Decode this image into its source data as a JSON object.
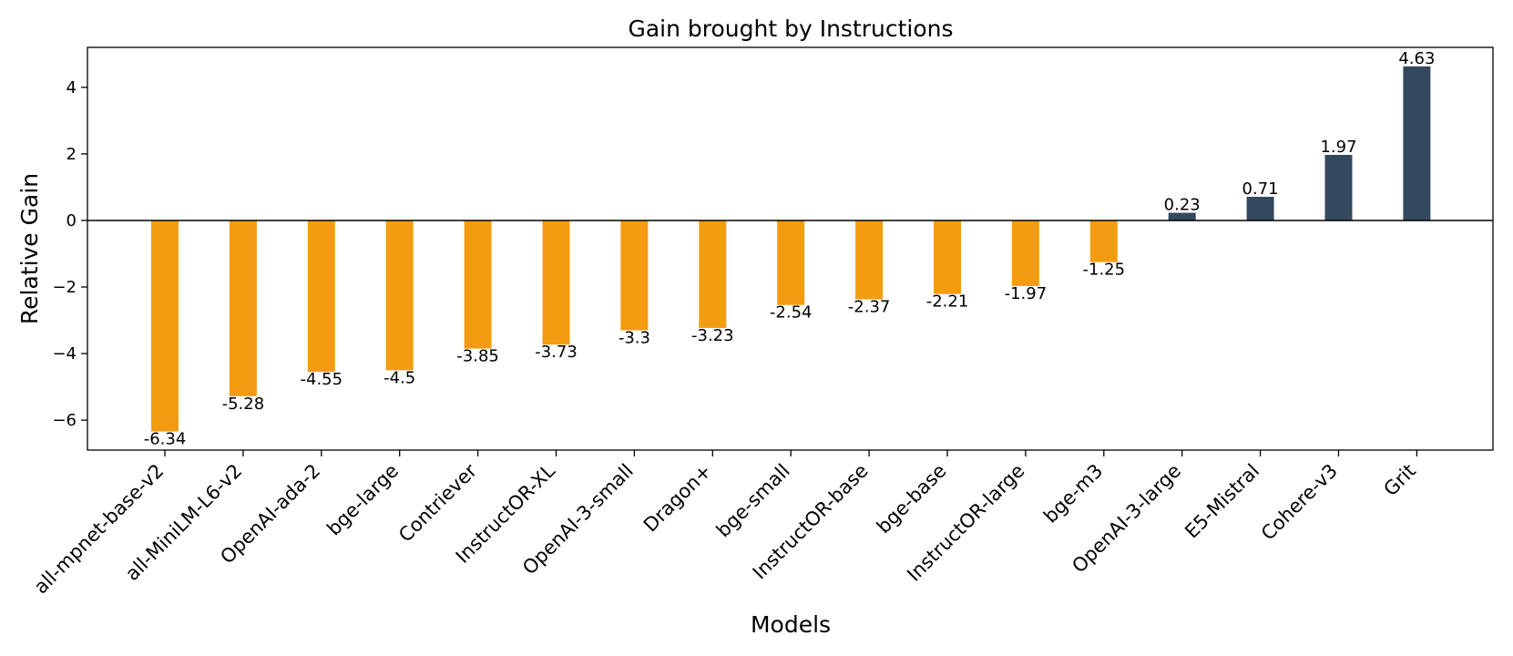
{
  "chart_data": {
    "type": "bar",
    "title": "Gain brought by Instructions",
    "xlabel": "Models",
    "ylabel": "Relative Gain",
    "ylim": [
      -6.9,
      5.2
    ],
    "yticks": [
      4,
      2,
      0,
      -2,
      -4,
      -6
    ],
    "grid": false,
    "categories": [
      "all-mpnet-base-v2",
      "all-MiniLM-L6-v2",
      "OpenAI-ada-2",
      "bge-large",
      "Contriever",
      "InstructOR-XL",
      "OpenAI-3-small",
      "Dragon+",
      "bge-small",
      "InstructOR-base",
      "bge-base",
      "InstructOR-large",
      "bge-m3",
      "OpenAI-3-large",
      "E5-Mistral",
      "Cohere-v3",
      "Grit"
    ],
    "values": [
      -6.34,
      -5.28,
      -4.55,
      -4.5,
      -3.85,
      -3.73,
      -3.3,
      -3.23,
      -2.54,
      -2.37,
      -2.21,
      -1.97,
      -1.25,
      0.23,
      0.71,
      1.97,
      4.63
    ],
    "colors": {
      "negative": "#f39c12",
      "positive": "#34495e",
      "zero_line": "#000000"
    }
  }
}
